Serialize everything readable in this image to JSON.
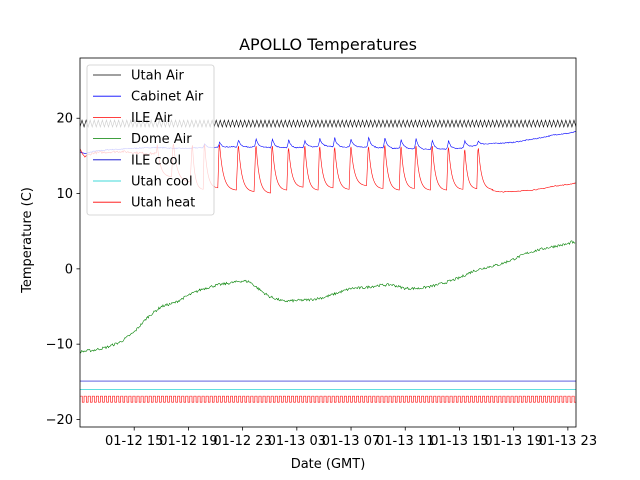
{
  "chart_data": {
    "type": "line",
    "title": "APOLLO Temperatures",
    "xlabel": "Date (GMT)",
    "ylabel": "Temperature (C)",
    "xlim": [
      11,
      47.6
    ],
    "ylim": [
      -21,
      28
    ],
    "x_unit": "hours since 01-12 00:00 GMT",
    "xticks": [
      {
        "value": 15,
        "label": "01-12 15"
      },
      {
        "value": 19,
        "label": "01-12 19"
      },
      {
        "value": 23,
        "label": "01-12 23"
      },
      {
        "value": 27,
        "label": "01-13 03"
      },
      {
        "value": 31,
        "label": "01-13 07"
      },
      {
        "value": 35,
        "label": "01-13 11"
      },
      {
        "value": 39,
        "label": "01-13 15"
      },
      {
        "value": 43,
        "label": "01-13 19"
      },
      {
        "value": 47,
        "label": "01-13 23"
      }
    ],
    "yticks": [
      {
        "value": 20,
        "label": "20"
      },
      {
        "value": 10,
        "label": "10"
      },
      {
        "value": 0,
        "label": "0"
      },
      {
        "value": -10,
        "label": "−10"
      },
      {
        "value": -20,
        "label": "−20"
      }
    ],
    "legend_position": "upper-left",
    "series": [
      {
        "name": "Utah Air",
        "color": "#000000",
        "kind": "oscillation",
        "base": 19.3,
        "amplitude": 0.45,
        "period_h": 0.3,
        "x_start": 11,
        "x_end": 47.6
      },
      {
        "name": "Cabinet Air",
        "color": "#0000ff",
        "kind": "cyclic_peaks",
        "x_start": 11,
        "x_end": 47.6,
        "points": [
          [
            11.0,
            15.5
          ],
          [
            11.4,
            15.3
          ],
          [
            12.0,
            15.6
          ],
          [
            13.0,
            15.8
          ],
          [
            14.0,
            15.9
          ],
          [
            15.0,
            16.0
          ],
          [
            16.0,
            16.1
          ],
          [
            17.0,
            16.1
          ],
          [
            18.0,
            16.0
          ],
          [
            19.0,
            16.0
          ],
          [
            20.0,
            16.1
          ],
          [
            21.0,
            16.1
          ],
          [
            22.0,
            16.2
          ],
          [
            23.0,
            16.2
          ],
          [
            24.0,
            16.2
          ],
          [
            25.0,
            16.1
          ],
          [
            26.0,
            16.1
          ],
          [
            27.0,
            16.1
          ],
          [
            28.0,
            16.2
          ],
          [
            29.0,
            16.3
          ],
          [
            30.0,
            16.2
          ],
          [
            31.0,
            16.2
          ],
          [
            32.0,
            16.2
          ],
          [
            33.0,
            16.1
          ],
          [
            34.0,
            16.0
          ],
          [
            35.0,
            16.0
          ],
          [
            36.0,
            15.9
          ],
          [
            37.0,
            15.9
          ],
          [
            38.0,
            15.9
          ],
          [
            39.0,
            16.0
          ],
          [
            40.0,
            16.3
          ],
          [
            41.0,
            16.6
          ],
          [
            42.0,
            16.7
          ],
          [
            43.0,
            16.8
          ],
          [
            44.0,
            17.1
          ],
          [
            45.0,
            17.4
          ],
          [
            46.0,
            17.8
          ],
          [
            47.0,
            18.0
          ],
          [
            47.6,
            18.2
          ]
        ],
        "peak_times": [
          20.2,
          21.3,
          22.7,
          24.0,
          25.2,
          26.4,
          27.6,
          28.7,
          29.8,
          31.0,
          32.3,
          33.5,
          34.7,
          35.8,
          37.0,
          38.2,
          39.4,
          40.4
        ],
        "peak_heights": [
          16.6,
          16.8,
          17.1,
          17.2,
          17.2,
          17.1,
          17.0,
          17.3,
          17.4,
          17.2,
          17.5,
          17.4,
          17.2,
          17.3,
          17.1,
          17.0,
          17.0,
          17.0
        ]
      },
      {
        "name": "ILE Air",
        "color": "#ff0000",
        "kind": "cyclic_sawtooth",
        "x_start": 11,
        "x_end": 47.6,
        "points": [
          [
            11.0,
            15.8
          ],
          [
            11.3,
            14.9
          ],
          [
            12.0,
            15.4
          ],
          [
            14.0,
            15.6
          ],
          [
            16.0,
            15.3
          ],
          [
            18.0,
            15.4
          ],
          [
            20.0,
            15.2
          ],
          [
            41.0,
            10.6
          ],
          [
            42.0,
            10.2
          ],
          [
            43.0,
            10.3
          ],
          [
            44.0,
            10.4
          ],
          [
            45.0,
            10.6
          ],
          [
            46.0,
            11.0
          ],
          [
            47.0,
            11.2
          ],
          [
            47.6,
            11.4
          ]
        ],
        "cycle_times": [
          16.7,
          17.9,
          19.3,
          20.2,
          21.3,
          22.7,
          24.0,
          25.2,
          26.4,
          27.6,
          28.7,
          29.8,
          31.0,
          32.3,
          33.5,
          34.7,
          35.8,
          37.0,
          38.2,
          39.4,
          40.4
        ],
        "cycle_peaks": [
          16.5,
          16.6,
          16.4,
          16.5,
          16.5,
          16.3,
          16.3,
          16.3,
          16.0,
          16.3,
          16.2,
          16.1,
          16.2,
          16.2,
          16.4,
          16.2,
          16.3,
          16.3,
          16.1,
          15.8,
          16.0
        ],
        "cycle_troughs": [
          12.2,
          11.5,
          10.5,
          10.7,
          10.4,
          10.2,
          10.0,
          10.4,
          10.8,
          10.4,
          10.7,
          10.5,
          11.0,
          10.6,
          10.4,
          10.6,
          10.4,
          10.4,
          10.5,
          10.6,
          10.5
        ]
      },
      {
        "name": "Dome Air",
        "color": "#008000",
        "kind": "noisy_line",
        "x_start": 11,
        "x_end": 47.6,
        "points": [
          [
            11.0,
            -11.0
          ],
          [
            12.0,
            -10.8
          ],
          [
            13.0,
            -10.4
          ],
          [
            14.0,
            -9.7
          ],
          [
            15.0,
            -8.4
          ],
          [
            16.0,
            -6.4
          ],
          [
            17.0,
            -5.0
          ],
          [
            18.0,
            -4.5
          ],
          [
            19.0,
            -3.5
          ],
          [
            20.0,
            -2.7
          ],
          [
            21.0,
            -2.2
          ],
          [
            22.0,
            -1.9
          ],
          [
            23.0,
            -1.6
          ],
          [
            23.5,
            -1.7
          ],
          [
            24.0,
            -2.4
          ],
          [
            24.5,
            -3.1
          ],
          [
            25.0,
            -3.7
          ],
          [
            26.0,
            -4.3
          ],
          [
            27.0,
            -4.2
          ],
          [
            28.0,
            -4.1
          ],
          [
            29.0,
            -3.8
          ],
          [
            30.0,
            -3.2
          ],
          [
            31.0,
            -2.6
          ],
          [
            32.0,
            -2.5
          ],
          [
            33.0,
            -2.2
          ],
          [
            34.0,
            -2.1
          ],
          [
            35.0,
            -2.6
          ],
          [
            36.0,
            -2.6
          ],
          [
            37.0,
            -2.3
          ],
          [
            38.0,
            -1.8
          ],
          [
            39.0,
            -1.2
          ],
          [
            40.0,
            -0.3
          ],
          [
            41.0,
            0.2
          ],
          [
            42.0,
            0.6
          ],
          [
            43.0,
            1.3
          ],
          [
            44.0,
            2.1
          ],
          [
            45.0,
            2.6
          ],
          [
            46.0,
            3.0
          ],
          [
            47.0,
            3.3
          ],
          [
            47.3,
            3.6
          ],
          [
            47.6,
            3.2
          ]
        ]
      },
      {
        "name": "ILE cool",
        "color": "#0000cc",
        "kind": "constant",
        "value": -14.9,
        "x_start": 11,
        "x_end": 47.6
      },
      {
        "name": "Utah cool",
        "color": "#00cccc",
        "kind": "constant",
        "value": -16.0,
        "x_start": 11,
        "x_end": 47.6
      },
      {
        "name": "Utah heat",
        "color": "#ff0000",
        "kind": "pulse_train",
        "low": -17.7,
        "high": -16.9,
        "period_h": 0.3,
        "duty": 0.55,
        "x_start": 11,
        "x_end": 47.6
      }
    ]
  }
}
